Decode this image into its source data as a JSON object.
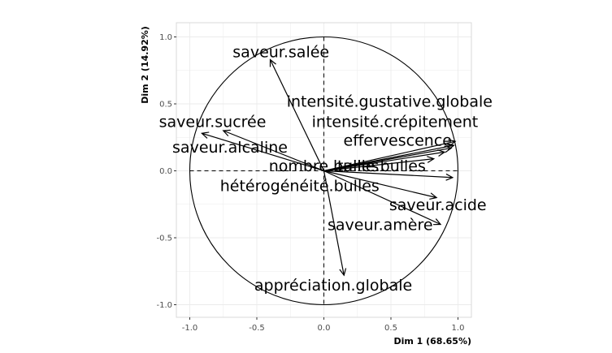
{
  "chart_data": {
    "type": "scatter",
    "subtype": "pca-variables-factor-map",
    "xlabel": "Dim 1 (68.65%)",
    "ylabel": "Dim 2 (14.92%)",
    "xlim": [
      -1.1,
      1.1
    ],
    "ylim": [
      -1.1,
      1.1
    ],
    "x_ticks": [
      "-1.0",
      "-0.5",
      "0.0",
      "0.5",
      "1.0"
    ],
    "y_ticks": [
      "1.0",
      "0.5",
      "0.0",
      "-0.5",
      "-1.0"
    ],
    "x_tick_values": [
      -1.0,
      -0.5,
      0.0,
      0.5,
      1.0
    ],
    "y_tick_values": [
      1.0,
      0.5,
      0.0,
      -0.5,
      -1.0
    ],
    "grid": true,
    "unit_circle": true,
    "reference_lines": "dashed at x=0 and y=0",
    "colors": {
      "arrows": "#000000",
      "grid": "#ebebeb",
      "panel_border": "#d9d9d9"
    },
    "variables": [
      {
        "name": "saveur.salée",
        "x": -0.4,
        "y": 0.83,
        "label_x": -0.32,
        "label_y": 0.89
      },
      {
        "name": "intensité.gustative.globale",
        "x": 0.98,
        "y": 0.22,
        "label_x": 0.49,
        "label_y": 0.52
      },
      {
        "name": "saveur.sucrée",
        "x": -0.91,
        "y": 0.28,
        "label_x": -0.83,
        "label_y": 0.37
      },
      {
        "name": "intensité.crépitement",
        "x": 0.97,
        "y": 0.19,
        "label_x": 0.53,
        "label_y": 0.37
      },
      {
        "name": "saveur.alcaline",
        "x": -0.75,
        "y": 0.3,
        "label_x": -0.7,
        "label_y": 0.18
      },
      {
        "name": "effervescence",
        "x": 0.95,
        "y": 0.17,
        "label_x": 0.55,
        "label_y": 0.23
      },
      {
        "name": "nombre.bulles",
        "x": 0.9,
        "y": 0.14,
        "label_x": 0.0,
        "label_y": 0.04
      },
      {
        "name": "taille.bulles",
        "x": 0.82,
        "y": 0.09,
        "label_x": 0.43,
        "label_y": 0.04
      },
      {
        "name": "hétérogénéité.bulles",
        "x": 0.96,
        "y": -0.05,
        "label_x": -0.18,
        "label_y": -0.11
      },
      {
        "name": "saveur.acide",
        "x": 0.84,
        "y": -0.2,
        "label_x": 0.85,
        "label_y": -0.25
      },
      {
        "name": "saveur.amère",
        "x": 0.87,
        "y": -0.4,
        "label_x": 0.42,
        "label_y": -0.4
      },
      {
        "name": "appréciation.globale",
        "x": 0.15,
        "y": -0.78,
        "label_x": 0.07,
        "label_y": -0.85
      }
    ]
  }
}
